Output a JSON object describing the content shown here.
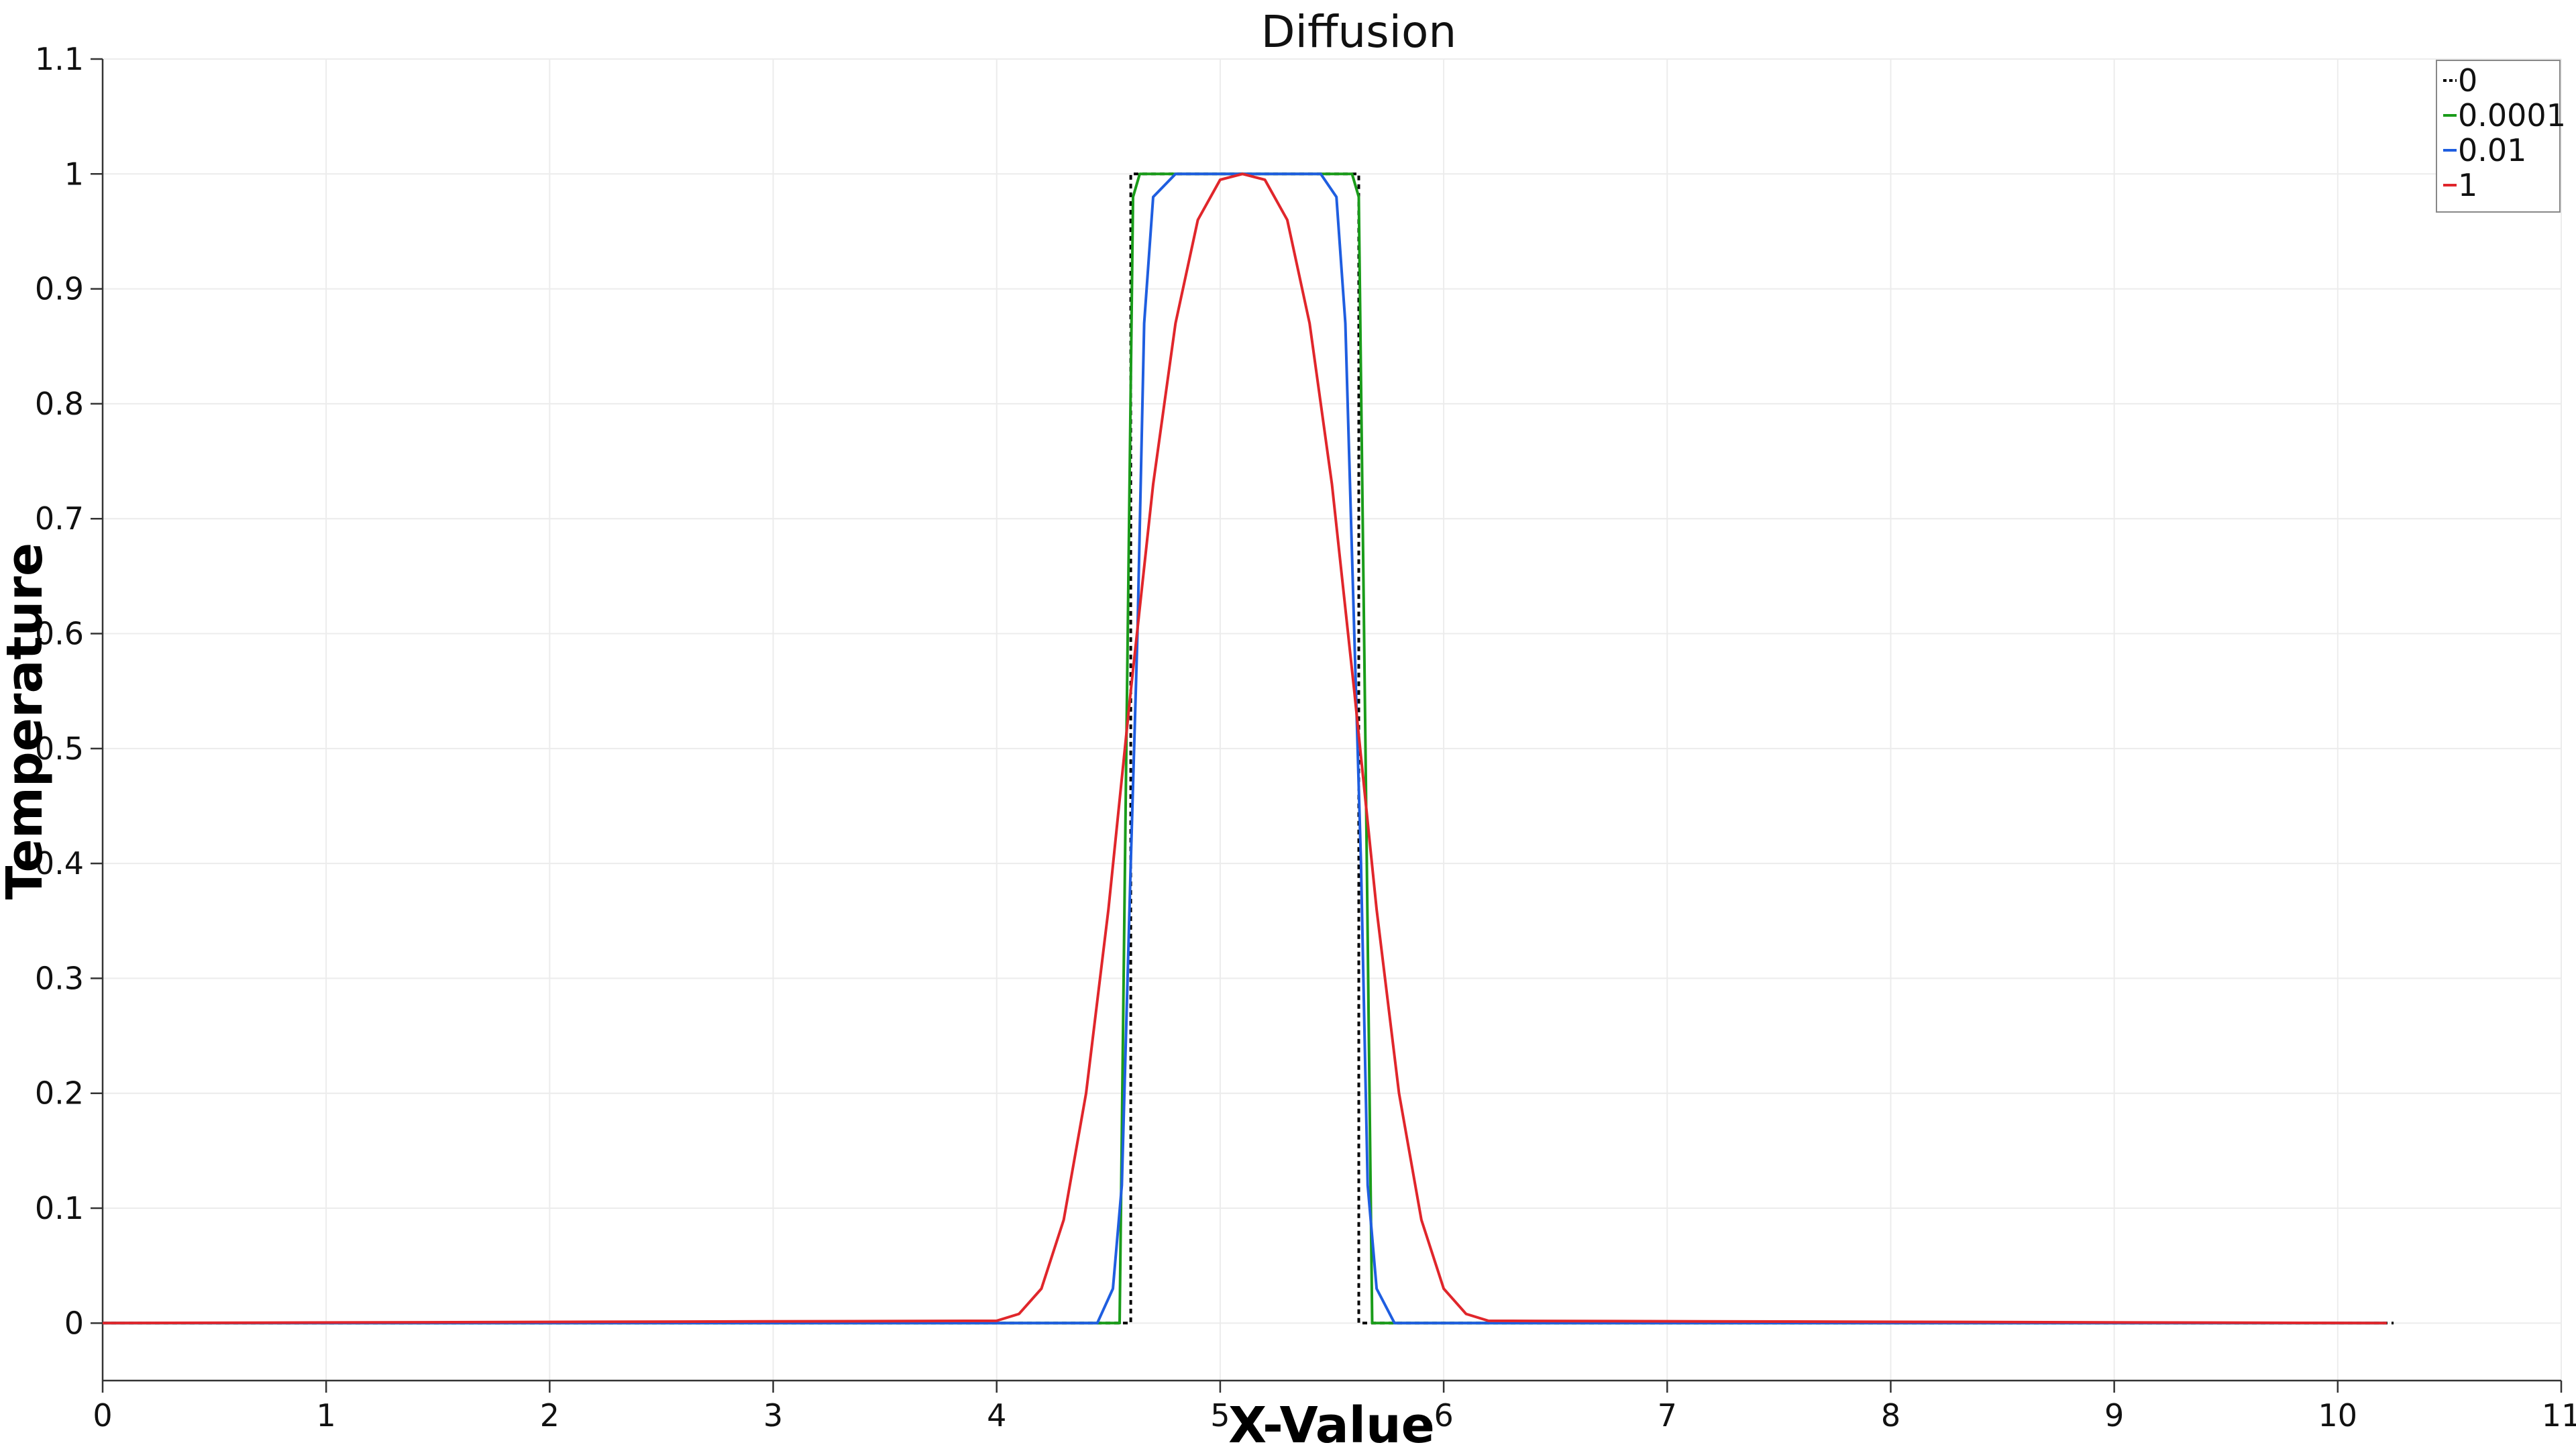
{
  "chart_data": {
    "type": "line",
    "title": "Diffusion",
    "xlabel": "X-Value",
    "ylabel": "Temperature",
    "xlim": [
      0,
      11
    ],
    "ylim": [
      -0.05,
      1.1
    ],
    "xticks": [
      0,
      1,
      2,
      3,
      4,
      5,
      6,
      7,
      8,
      9,
      10,
      11
    ],
    "yticks": [
      0,
      0.1,
      0.2,
      0.3,
      0.4,
      0.5,
      0.6,
      0.7,
      0.8,
      0.9,
      1,
      1.1
    ],
    "ytick_labels": [
      "0",
      "0.1",
      "0.2",
      "0.3",
      "0.4",
      "0.5",
      "0.6",
      "0.7",
      "0.8",
      "0.9",
      "1",
      "1.1"
    ],
    "grid": true,
    "legend_position": "top-right",
    "series": [
      {
        "name": "0",
        "color": "#000000",
        "dashed": true,
        "x": [
          0,
          4.6,
          4.6,
          5.62,
          5.62,
          10.25
        ],
        "y": [
          0,
          0,
          1,
          1,
          0,
          0
        ]
      },
      {
        "name": "0.0001",
        "color": "#1a9c1a",
        "dashed": false,
        "x": [
          0,
          4.55,
          4.58,
          4.61,
          4.64,
          5.59,
          5.62,
          5.65,
          5.68,
          10.22
        ],
        "y": [
          0,
          0,
          0.5,
          0.98,
          1,
          1,
          0.98,
          0.5,
          0,
          0
        ]
      },
      {
        "name": "0.01",
        "color": "#1f5ee0",
        "dashed": false,
        "x": [
          0,
          4.45,
          4.52,
          4.56,
          4.6,
          4.63,
          4.66,
          4.7,
          4.8,
          5.45,
          5.52,
          5.56,
          5.6,
          5.63,
          5.66,
          5.7,
          5.78,
          10.22
        ],
        "y": [
          0,
          0,
          0.03,
          0.12,
          0.4,
          0.6,
          0.87,
          0.98,
          1,
          1,
          0.98,
          0.87,
          0.6,
          0.4,
          0.12,
          0.03,
          0,
          0
        ]
      },
      {
        "name": "1",
        "color": "#e0262b",
        "dashed": false,
        "x": [
          0,
          4.0,
          4.1,
          4.2,
          4.3,
          4.4,
          4.5,
          4.6,
          4.7,
          4.8,
          4.9,
          5.0,
          5.1,
          5.2,
          5.3,
          5.4,
          5.5,
          5.6,
          5.7,
          5.8,
          5.9,
          6.0,
          6.1,
          6.2,
          10.22
        ],
        "y": [
          0,
          0.002,
          0.008,
          0.03,
          0.09,
          0.2,
          0.36,
          0.55,
          0.73,
          0.87,
          0.96,
          0.995,
          1.0,
          0.995,
          0.96,
          0.87,
          0.73,
          0.55,
          0.36,
          0.2,
          0.09,
          0.03,
          0.008,
          0.002,
          0
        ]
      }
    ]
  }
}
